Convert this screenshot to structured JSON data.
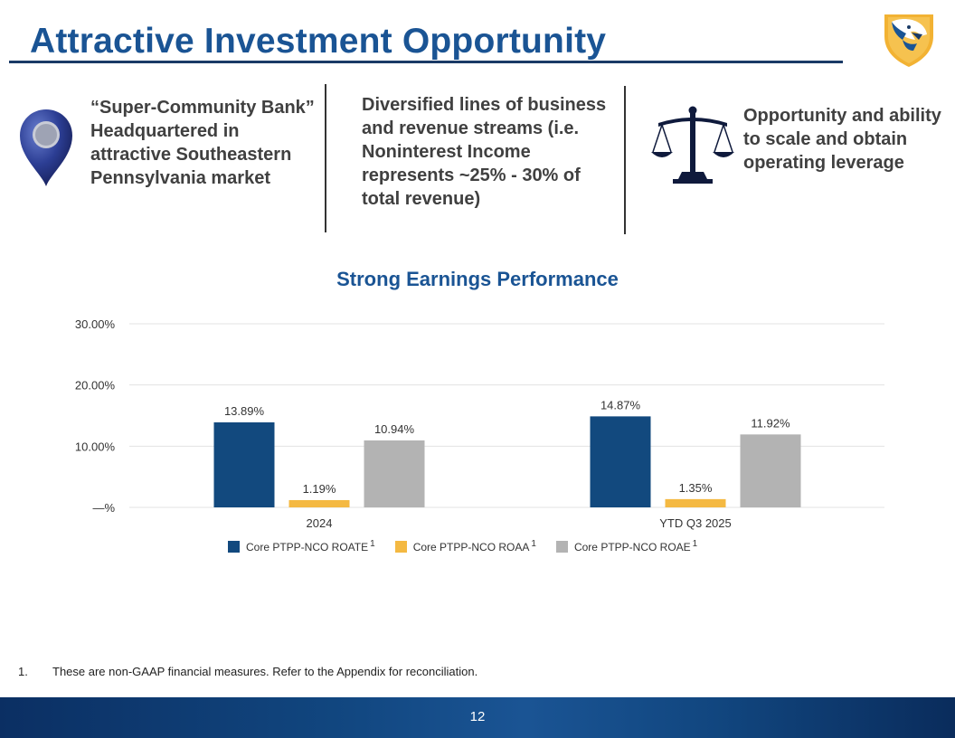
{
  "slide": {
    "title": "Attractive Investment Opportunity",
    "page_number": "12",
    "footnote_number": "1.",
    "footnote_text": "These are non-GAAP financial measures. Refer to the Appendix for reconciliation."
  },
  "features": [
    {
      "icon": "map-pin-icon",
      "text": "“Super-Community Bank” Headquartered in attractive Southeastern Pennsylvania market"
    },
    {
      "icon": "none",
      "text": "Diversified lines of business and revenue streams (i.e. Noninterest Income represents ~25% - 30% of total revenue)"
    },
    {
      "icon": "scales-icon",
      "text": "Opportunity and ability to scale and obtain operating leverage"
    }
  ],
  "colors": {
    "title": "#1a5494",
    "roate": "#12497e",
    "roaa": "#f4b942",
    "roae": "#b3b3b3"
  },
  "chart_data": {
    "type": "bar",
    "title": "Strong Earnings Performance",
    "categories": [
      "2024",
      "YTD Q3 2025"
    ],
    "series": [
      {
        "name": "Core PTPP-NCO ROATE",
        "footnote": "1",
        "values": [
          13.89,
          14.87
        ],
        "labels": [
          "13.89%",
          "14.87%"
        ]
      },
      {
        "name": "Core PTPP-NCO ROAA",
        "footnote": "1",
        "values": [
          1.19,
          1.35
        ],
        "labels": [
          "1.19%",
          "1.35%"
        ]
      },
      {
        "name": "Core PTPP-NCO ROAE",
        "footnote": "1",
        "values": [
          10.94,
          11.92
        ],
        "labels": [
          "10.94%",
          "11.92%"
        ]
      }
    ],
    "yticks": [
      "—%",
      "10.00%",
      "20.00%",
      "30.00%"
    ],
    "ylim": [
      0,
      30
    ],
    "grid": true,
    "legend_position": "bottom"
  }
}
